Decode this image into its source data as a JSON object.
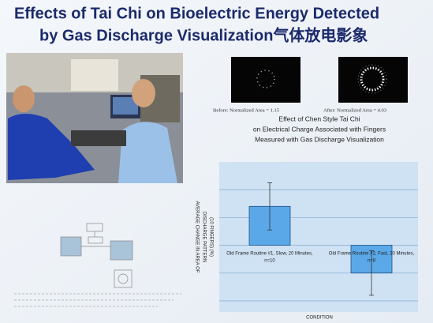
{
  "title": [
    "Effects of Tai Chi on Bioelectric Energy Detected",
    "by Gas Discharge Visualization气体放电影象"
  ],
  "images": [
    {
      "caption": "Before: Normalized Area = 1.15"
    },
    {
      "caption": "After: Normalized Area = 4.03"
    }
  ],
  "chart_data": {
    "type": "bar",
    "title": [
      "Effect of Chen Style Tai Chi",
      "on Electrical Charge Associated with Fingers",
      "Measured with Gas Discharge Visualization"
    ],
    "categories": [
      "Old Frame Routine #1, Slow, 20 Minutes,",
      "Old Frame Routine #2, Fast, 20 Minutes,"
    ],
    "category_notes": [
      "n=10",
      "n=8"
    ],
    "values": [
      1.4,
      -1.0
    ],
    "errors": [
      0.85,
      0.8
    ],
    "color": "#5aa8e8",
    "ylim": [
      -2.4,
      3
    ],
    "ygrid": [
      -2,
      -1,
      0,
      1,
      2
    ],
    "ylabel": [
      "AVERAGE CHANGE IN AREA OF",
      "DISCHARGE PATTERN",
      "(10 FINGERS) (%)"
    ],
    "xlabel": "CONDITION"
  }
}
